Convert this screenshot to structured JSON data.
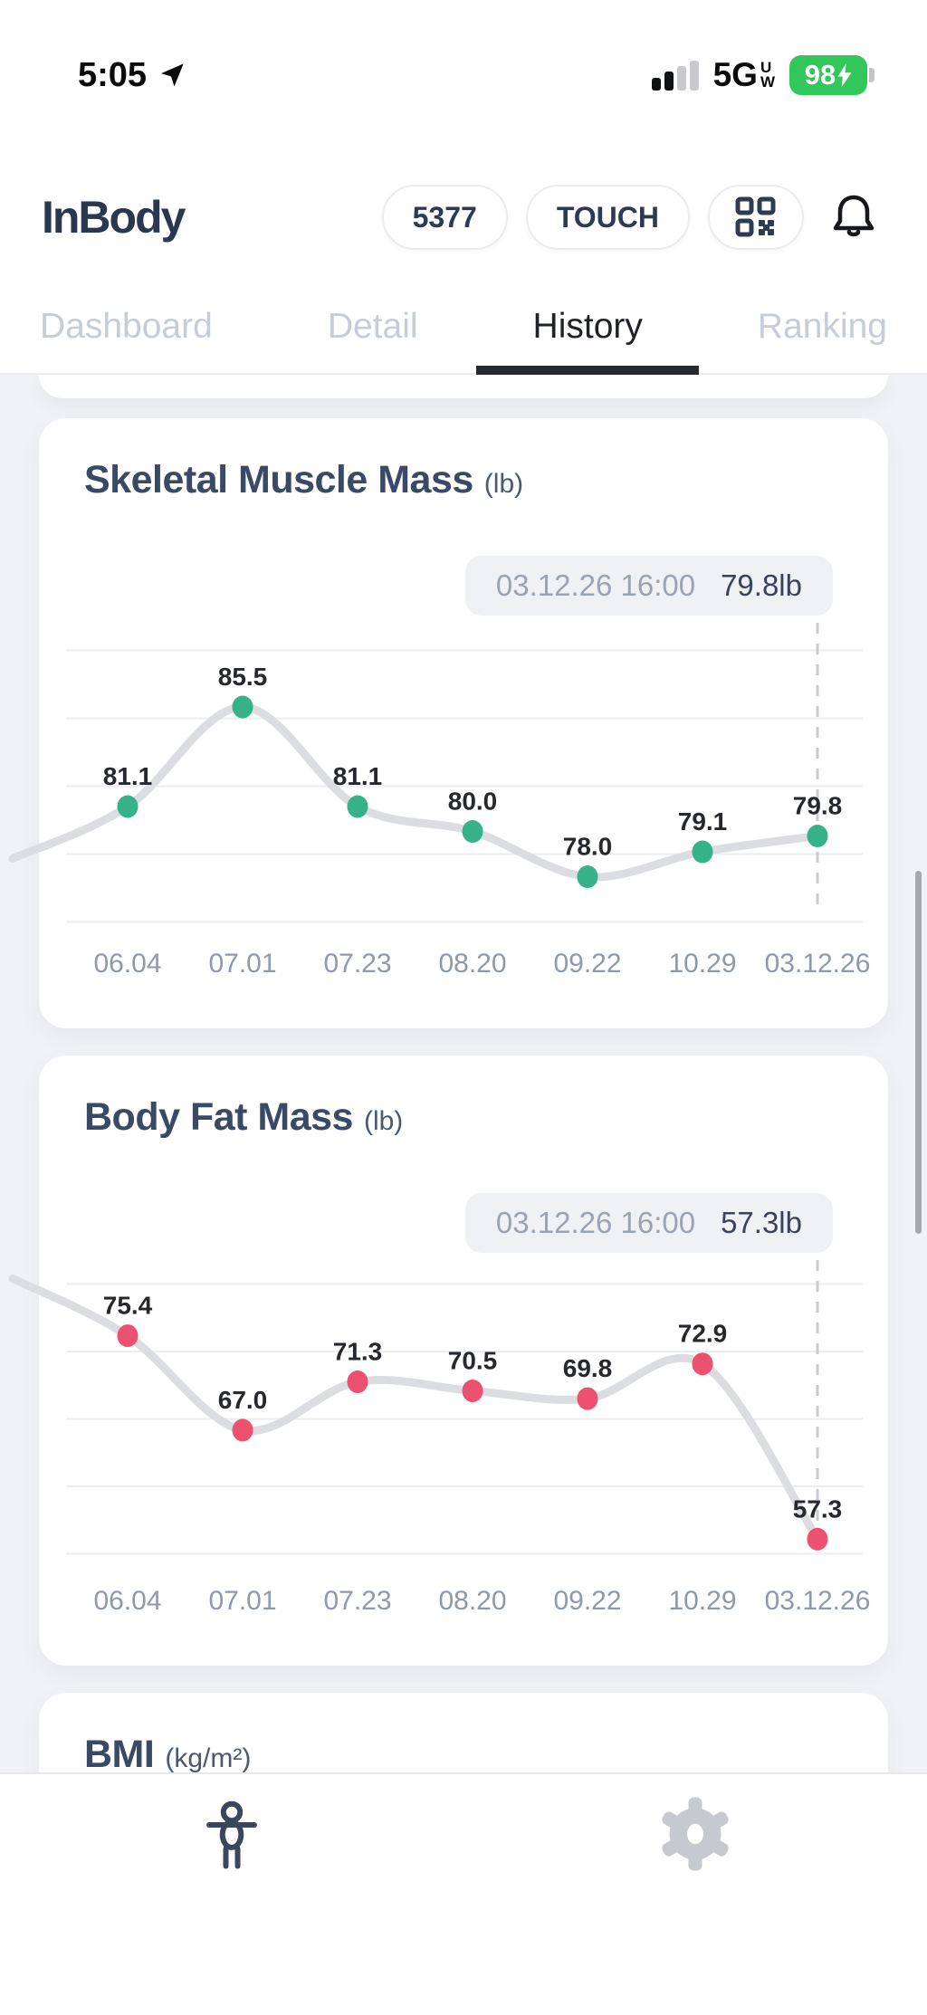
{
  "status_bar": {
    "time": "5:05",
    "network": "5G",
    "network_sub_top": "U",
    "network_sub_bottom": "W",
    "battery_percent": "98",
    "battery_charging": true,
    "signal_bars_filled": 2,
    "signal_bars_total": 4
  },
  "header": {
    "logo_text": "InBody",
    "device_number": "5377",
    "device_model": "TOUCH"
  },
  "tabs": {
    "items": [
      {
        "label": "Dashboard",
        "active": false
      },
      {
        "label": "Detail",
        "active": false
      },
      {
        "label": "History",
        "active": true
      },
      {
        "label": "Ranking",
        "active": false
      }
    ]
  },
  "charts": [
    {
      "title": "Skeletal Muscle Mass",
      "unit": "(lb)",
      "tooltip": {
        "datetime": "03.12.26 16:00",
        "value": "79.8lb"
      },
      "dot_color": "#35B288",
      "chart_data": {
        "type": "line",
        "x": [
          "06.04",
          "07.01",
          "07.23",
          "08.20",
          "09.22",
          "10.29",
          "03.12.26"
        ],
        "values": [
          81.1,
          85.5,
          81.1,
          80.0,
          78.0,
          79.1,
          79.8
        ],
        "point_labels": [
          "81.1",
          "85.5",
          "81.1",
          "80.0",
          "78.0",
          "79.1",
          "79.8"
        ],
        "ylim": [
          75.3,
          89.3
        ],
        "gridline_values": [
          76,
          79,
          82,
          85,
          88
        ],
        "lead_in_value": 78.8,
        "selected_index": 6,
        "grid": true,
        "legend": false,
        "line_color": "#DCDDE0",
        "selected_line_color": "#C9CBD0"
      }
    },
    {
      "title": "Body Fat Mass",
      "unit": "(lb)",
      "tooltip": {
        "datetime": "03.12.26 16:00",
        "value": "57.3lb"
      },
      "dot_color": "#EC5170",
      "chart_data": {
        "type": "line",
        "x": [
          "06.04",
          "07.01",
          "07.23",
          "08.20",
          "09.22",
          "10.29",
          "03.12.26"
        ],
        "values": [
          75.4,
          67.0,
          71.3,
          70.5,
          69.8,
          72.9,
          57.3
        ],
        "point_labels": [
          "75.4",
          "67.0",
          "71.3",
          "70.5",
          "69.8",
          "72.9",
          "57.3"
        ],
        "ylim": [
          54.1,
          82.3
        ],
        "gridline_values": [
          56,
          62,
          68,
          74,
          80
        ],
        "lead_in_value": 80.5,
        "selected_index": 6,
        "grid": true,
        "legend": false,
        "line_color": "#DCDDE0",
        "selected_line_color": "#C9CBD0"
      }
    }
  ],
  "bmi_card": {
    "title": "BMI",
    "unit": "(kg/m²)"
  },
  "bottom_bar": {
    "items": [
      {
        "icon": "body-composition-icon",
        "active": true
      },
      {
        "icon": "settings-gear-icon",
        "active": false
      }
    ]
  },
  "colors": {
    "accent_green": "#35B288",
    "accent_pink": "#EC5170",
    "title_navy": "#3A4A66",
    "page_background": "#F1F2F5",
    "battery_green": "#31C75A"
  }
}
